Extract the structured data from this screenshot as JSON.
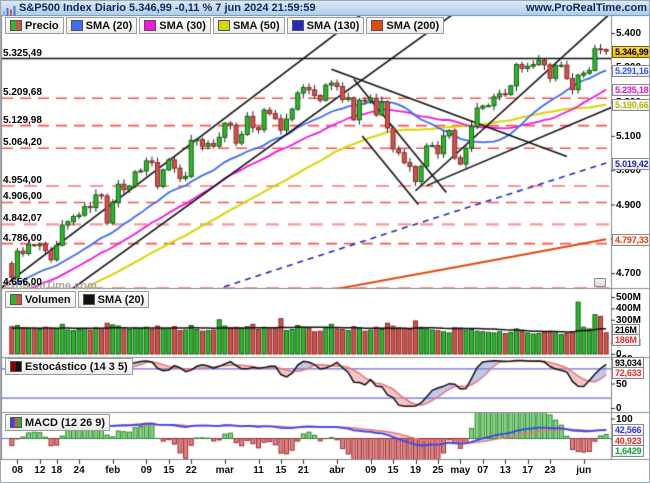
{
  "header": {
    "title": "S&P500 Index Diario 5.346,99 -0,11 % 7 jun 2024 21:59:59",
    "site": "www.ProRealTime.com"
  },
  "watermark": "ProRealTime.com",
  "price_panel": {
    "legend": [
      {
        "label": "Precio",
        "icon": "price-candles-icon",
        "colors": [
          "#2fb62f",
          "#c9544f"
        ]
      },
      {
        "label": "SMA (20)",
        "icon": "sma20-swatch-icon",
        "colors": [
          "#3b6ef5"
        ]
      },
      {
        "label": "SMA (30)",
        "icon": "sma30-swatch-icon",
        "colors": [
          "#f118e0"
        ]
      },
      {
        "label": "SMA (50)",
        "icon": "sma50-swatch-icon",
        "colors": [
          "#d6d600"
        ]
      },
      {
        "label": "SMA (130)",
        "icon": "sma130-swatch-icon",
        "colors": [
          "#2329b8"
        ]
      },
      {
        "label": "SMA (200)",
        "icon": "sma200-swatch-icon",
        "colors": [
          "#e04a10"
        ]
      }
    ],
    "levels": [
      {
        "text": "5.325,49",
        "value": 5325.49,
        "style": "solid"
      },
      {
        "text": "5.209,68",
        "value": 5209.68,
        "style": "bright"
      },
      {
        "text": "5.129,98",
        "value": 5129.98,
        "style": "bright"
      },
      {
        "text": "5.064,20",
        "value": 5064.2,
        "style": "bright"
      },
      {
        "text": "4.954,00",
        "value": 4954.0,
        "style": "light"
      },
      {
        "text": "4.906,00",
        "value": 4906.0,
        "style": "bright"
      },
      {
        "text": "4.842,07",
        "value": 4842.07,
        "style": "light"
      },
      {
        "text": "4.786,00",
        "value": 4786.0,
        "style": "bright"
      },
      {
        "text": "4.656,00",
        "value": 4656.0,
        "style": "light"
      }
    ],
    "right_ticks": [
      {
        "text": "5.400",
        "value": 5400
      },
      {
        "text": "5.300",
        "value": 5300
      },
      {
        "text": "5.200",
        "value": 5200
      },
      {
        "text": "5.100",
        "value": 5100
      },
      {
        "text": "5.000",
        "value": 5000
      },
      {
        "text": "4.900",
        "value": 4900
      },
      {
        "text": "4.800",
        "value": 4800
      },
      {
        "text": "4.700",
        "value": 4700
      }
    ],
    "badges": [
      {
        "text": "5.346,99",
        "value": 5346.99,
        "fg": "#000000",
        "gold": true
      },
      {
        "text": "5.291,16",
        "value": 5291.16,
        "fg": "#2e59e8"
      },
      {
        "text": "5.235,18",
        "value": 5235.18,
        "fg": "#e814d6"
      },
      {
        "text": "5.190,66",
        "value": 5190.66,
        "fg": "#b8b800"
      },
      {
        "text": "5.019,42",
        "value": 5019.42,
        "fg": "#2020bb"
      },
      {
        "text": "4.797,33",
        "value": 4797.33,
        "fg": "#d94510"
      }
    ]
  },
  "volume_panel": {
    "legend": [
      {
        "label": "Volumen",
        "icon": "volume-bars-icon",
        "colors": [
          "#2fb62f",
          "#c9544f"
        ]
      },
      {
        "label": "SMA (20)",
        "icon": "volume-sma-swatch-icon",
        "colors": [
          "#111111"
        ]
      }
    ],
    "right_ticks": [
      {
        "text": "500M",
        "value": 500
      },
      {
        "text": "400M",
        "value": 400
      },
      {
        "text": "300M",
        "value": 300
      },
      {
        "text": "100M",
        "value": 100
      },
      {
        "text": "0",
        "value": 0
      }
    ],
    "badges": [
      {
        "text": "216M",
        "value": 216,
        "fg": "#000000"
      },
      {
        "text": "186M",
        "value": 186,
        "fg": "#e03030"
      }
    ]
  },
  "stoch_panel": {
    "legend": [
      {
        "label": "Estocástico (14 3 5)",
        "icon": "stochastic-swatch-icon",
        "colors": [
          "#8b0000",
          "#111111"
        ]
      }
    ],
    "right_ticks": [
      {
        "text": "100",
        "value": 100
      },
      {
        "text": "50",
        "value": 50
      },
      {
        "text": "0",
        "value": 0
      }
    ],
    "badges": [
      {
        "text": "93,034",
        "value": 93.034,
        "fg": "#000000"
      },
      {
        "text": "72,633",
        "value": 72.633,
        "fg": "#e03030"
      }
    ],
    "hlines": [
      80,
      20
    ]
  },
  "macd_panel": {
    "legend": [
      {
        "label": "MACD (12 26 9)",
        "icon": "macd-swatch-icon",
        "colors": [
          "#3a44ee",
          "#e05050",
          "#2fb62f"
        ]
      }
    ],
    "right_ticks": [
      {
        "text": "100",
        "value": 100
      },
      {
        "text": "0",
        "value": 0
      }
    ],
    "badges": [
      {
        "text": "42,566",
        "value": 42.566,
        "fg": "#2e35e0"
      },
      {
        "text": "40,923",
        "value": 40.923,
        "fg": "#e03030"
      },
      {
        "text": "1,6429",
        "value": 1.6429,
        "fg": "#12a23c"
      }
    ]
  },
  "x_axis": {
    "ticks": [
      {
        "label": "08",
        "i": 1
      },
      {
        "label": "12",
        "i": 5
      },
      {
        "label": "18",
        "i": 8
      },
      {
        "label": "24",
        "i": 12
      },
      {
        "label": "feb",
        "i": 18
      },
      {
        "label": "09",
        "i": 24
      },
      {
        "label": "15",
        "i": 28
      },
      {
        "label": "22",
        "i": 32
      },
      {
        "label": "mar",
        "i": 38
      },
      {
        "label": "11",
        "i": 44
      },
      {
        "label": "15",
        "i": 48
      },
      {
        "label": "21",
        "i": 52
      },
      {
        "label": "abr",
        "i": 58
      },
      {
        "label": "09",
        "i": 64
      },
      {
        "label": "15",
        "i": 68
      },
      {
        "label": "19",
        "i": 72
      },
      {
        "label": "25",
        "i": 76
      },
      {
        "label": "may",
        "i": 80
      },
      {
        "label": "07",
        "i": 84
      },
      {
        "label": "13",
        "i": 88
      },
      {
        "label": "17",
        "i": 92
      },
      {
        "label": "23",
        "i": 96
      },
      {
        "label": "jun",
        "i": 102
      }
    ]
  },
  "chart_data": {
    "type": "candlestick",
    "title": "S&P500 Index Diario",
    "last_price": 5346.99,
    "change_pct": -0.11,
    "date": "7 jun 2024 21:59:59",
    "price_range_visible": [
      4656,
      5452
    ],
    "closes": [
      4688,
      4764,
      4757,
      4783,
      4780,
      4784,
      4766,
      4739,
      4781,
      4840,
      4850,
      4865,
      4869,
      4894,
      4891,
      4928,
      4925,
      4846,
      4906,
      4959,
      4943,
      4954,
      4995,
      4998,
      5027,
      5022,
      4953,
      5001,
      5030,
      5006,
      4976,
      4982,
      5087,
      5089,
      5070,
      5078,
      5070,
      5096,
      5137,
      5131,
      5079,
      5104,
      5157,
      5124,
      5118,
      5175,
      5165,
      5150,
      5117,
      5149,
      5178,
      5225,
      5241,
      5234,
      5218,
      5204,
      5248,
      5254,
      5244,
      5206,
      5211,
      5147,
      5204,
      5202,
      5210,
      5161,
      5199,
      5123,
      5062,
      5051,
      5022,
      5011,
      4967,
      5011,
      5071,
      5072,
      5048,
      5100,
      5116,
      5036,
      5018,
      5064,
      5128,
      5181,
      5187,
      5188,
      5214,
      5223,
      5221,
      5246,
      5308,
      5297,
      5303,
      5308,
      5321,
      5307,
      5268,
      5305,
      5306,
      5267,
      5235,
      5277,
      5283,
      5291,
      5354,
      5352,
      5347
    ],
    "volumes_m": [
      240,
      250,
      230,
      225,
      220,
      215,
      235,
      225,
      220,
      260,
      210,
      205,
      215,
      225,
      210,
      230,
      225,
      270,
      255,
      245,
      220,
      215,
      230,
      225,
      235,
      215,
      245,
      220,
      225,
      240,
      205,
      210,
      250,
      215,
      200,
      205,
      210,
      300,
      245,
      230,
      235,
      225,
      240,
      260,
      215,
      235,
      220,
      225,
      310,
      205,
      215,
      250,
      235,
      225,
      195,
      200,
      230,
      260,
      220,
      215,
      205,
      240,
      225,
      200,
      210,
      235,
      215,
      270,
      245,
      230,
      225,
      215,
      290,
      235,
      220,
      210,
      205,
      195,
      185,
      230,
      225,
      210,
      215,
      200,
      195,
      190,
      185,
      195,
      180,
      190,
      220,
      200,
      185,
      175,
      180,
      190,
      200,
      185,
      170,
      180,
      195,
      455,
      235,
      220,
      345,
      330,
      186
    ],
    "indicators": {
      "sma_overlays": [
        20,
        30,
        50,
        130,
        200
      ],
      "sma130_current": 5019.42,
      "sma200_current": 4797.33,
      "sma20_current": 5291.16,
      "sma30_current": 5235.18,
      "sma50_current": 5190.66,
      "volume_sma20_current_m": 216,
      "volume_last_m": 186,
      "stochastic": {
        "params": [
          14,
          3,
          5
        ],
        "k": 93.034,
        "d": 72.633,
        "overbought": 80,
        "oversold": 20
      },
      "macd": {
        "params": [
          12,
          26,
          9
        ],
        "macd": 42.566,
        "signal": 40.923,
        "histogram": 1.6429
      }
    },
    "overlays": {
      "sma130_path": [
        [
          36,
          4650
        ],
        [
          70,
          4832
        ],
        [
          106,
          5021
        ]
      ],
      "sma200_path": [
        [
          56,
          4648
        ],
        [
          82,
          4726
        ],
        [
          106,
          4799
        ]
      ]
    },
    "trendlines": [
      [
        -3,
        4643,
        63,
        5462
      ],
      [
        10,
        4645,
        80,
        5470
      ],
      [
        61,
        5265,
        77.5,
        4935
      ],
      [
        62.5,
        5100,
        72.5,
        4900
      ],
      [
        57,
        5294,
        99,
        5040
      ],
      [
        72,
        4940,
        106.8,
        5458
      ],
      [
        74,
        4955,
        108,
        5190
      ]
    ]
  }
}
